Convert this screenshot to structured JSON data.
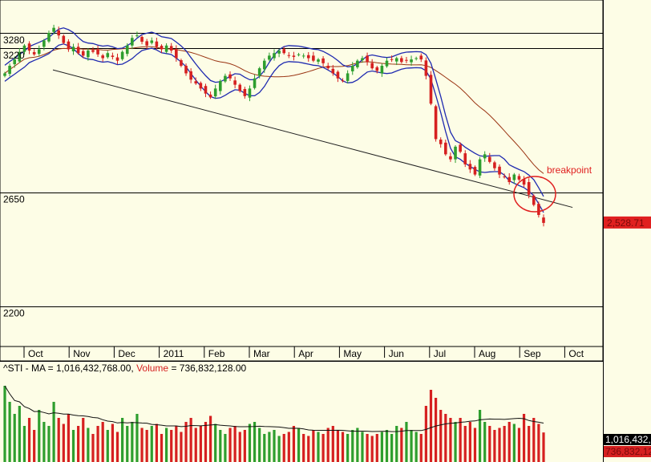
{
  "chart_data": {
    "type": "candlestick",
    "symbol": "^STI",
    "price_axis": {
      "tick_labels": [
        "3280",
        "3220",
        "2650",
        "2200"
      ],
      "reference_lines": [
        3280,
        3220,
        2650,
        2200
      ],
      "ylim": [
        2040,
        3410
      ]
    },
    "months": [
      "Oct",
      "Nov",
      "Dec",
      "2011",
      "Feb",
      "Mar",
      "Apr",
      "May",
      "Jun",
      "Jul",
      "Aug",
      "Sep",
      "Oct"
    ],
    "last_price_label": "2,528.71",
    "annotation": "breakpoint",
    "trendline": {
      "start": {
        "x_month_index": 0,
        "price": 3140
      },
      "end": {
        "x_month_index": 12.6,
        "price": 2590
      }
    },
    "closes": [
      3120,
      3150,
      3175,
      3205,
      3230,
      3210,
      3195,
      3215,
      3250,
      3280,
      3300,
      3270,
      3240,
      3215,
      3225,
      3200,
      3190,
      3210,
      3205,
      3195,
      3180,
      3200,
      3185,
      3170,
      3205,
      3230,
      3260,
      3270,
      3245,
      3230,
      3250,
      3225,
      3215,
      3230,
      3210,
      3180,
      3150,
      3120,
      3095,
      3080,
      3060,
      3040,
      3025,
      3060,
      3090,
      3110,
      3100,
      3075,
      3050,
      3030,
      3060,
      3100,
      3140,
      3170,
      3190,
      3200,
      3210,
      3200,
      3190,
      3185,
      3195,
      3190,
      3180,
      3170,
      3175,
      3160,
      3140,
      3120,
      3100,
      3090,
      3120,
      3150,
      3170,
      3180,
      3165,
      3140,
      3130,
      3150,
      3170,
      3175,
      3180,
      3165,
      3170,
      3175,
      3180,
      3175,
      3110,
      3000,
      2860,
      2840,
      2800,
      2780,
      2830,
      2810,
      2760,
      2740,
      2720,
      2780,
      2800,
      2770,
      2745,
      2720,
      2710,
      2690,
      2720,
      2700,
      2680,
      2640,
      2600,
      2560,
      2528.71
    ],
    "volume": {
      "label": "^STI - MA = 1,016,432,768.00, Volume = 736,832,128.00",
      "ma_value_label": "1,016,432,768.00",
      "volume_value_label": "736,832,128.00",
      "ma_tag": "1,016,432,",
      "vol_tag": "736,832,12",
      "ylim": [
        0,
        2200000000
      ],
      "values": [
        1900000000,
        1500000000,
        1200000000,
        1400000000,
        900000000,
        1100000000,
        800000000,
        1300000000,
        1000000000,
        900000000,
        1500000000,
        1100000000,
        950000000,
        1200000000,
        800000000,
        900000000,
        1100000000,
        850000000,
        700000000,
        900000000,
        1000000000,
        800000000,
        950000000,
        750000000,
        1100000000,
        900000000,
        1000000000,
        1200000000,
        850000000,
        800000000,
        900000000,
        950000000,
        700000000,
        850000000,
        800000000,
        900000000,
        750000000,
        1000000000,
        1100000000,
        850000000,
        900000000,
        1000000000,
        1150000000,
        950000000,
        800000000,
        700000000,
        850000000,
        900000000,
        750000000,
        800000000,
        950000000,
        1000000000,
        850000000,
        700000000,
        750000000,
        800000000,
        650000000,
        700000000,
        750000000,
        900000000,
        850000000,
        700000000,
        650000000,
        800000000,
        750000000,
        700000000,
        850000000,
        900000000,
        800000000,
        750000000,
        700000000,
        800000000,
        850000000,
        750000000,
        700000000,
        650000000,
        700000000,
        750000000,
        800000000,
        700000000,
        900000000,
        850000000,
        1000000000,
        800000000,
        750000000,
        700000000,
        1400000000,
        1800000000,
        1600000000,
        1300000000,
        1200000000,
        1100000000,
        1000000000,
        1100000000,
        900000000,
        1000000000,
        850000000,
        1300000000,
        1000000000,
        900000000,
        800000000,
        850000000,
        900000000,
        1000000000,
        950000000,
        850000000,
        1200000000,
        900000000,
        1100000000,
        950000000,
        736832128
      ]
    }
  },
  "colors": {
    "up": "#2e9e2e",
    "down": "#d62020",
    "ma_fast": "#1f2ab0",
    "ma_slow": "#9a3412",
    "circle": "#e02020",
    "price_tag": "#e02020",
    "bg": "#fdfde6"
  }
}
